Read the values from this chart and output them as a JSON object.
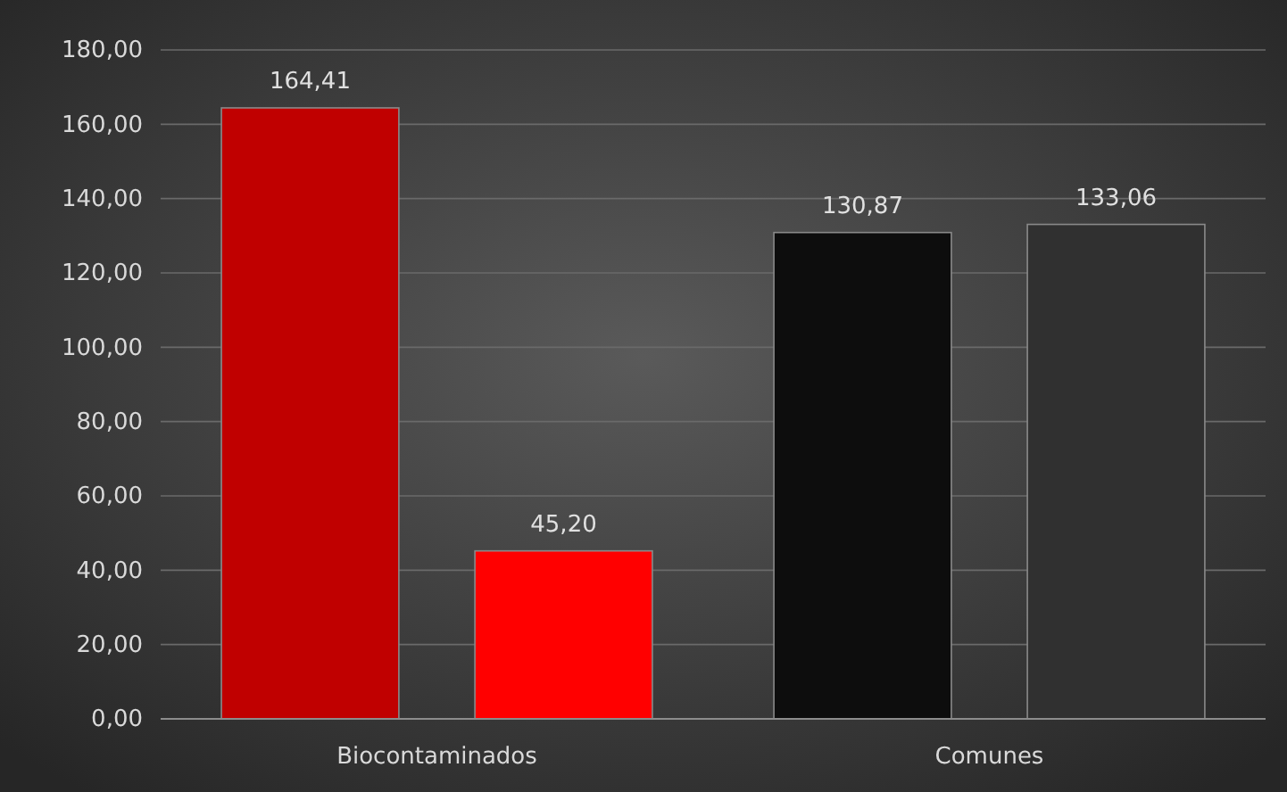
{
  "chart_data": {
    "type": "bar",
    "categories": [
      "Biocontaminados",
      "Comunes"
    ],
    "series": [
      {
        "colors": [
          "#c00000",
          "#0d0d0d"
        ],
        "values": [
          164.41,
          130.87
        ],
        "value_labels": [
          "164,41",
          "130,87"
        ]
      },
      {
        "colors": [
          "#ff0000",
          "#303030"
        ],
        "values": [
          45.2,
          133.06
        ],
        "value_labels": [
          "45,20",
          "133,06"
        ]
      }
    ],
    "ylim": [
      0,
      180
    ],
    "yticks": [
      {
        "value": 0,
        "label": "0,00"
      },
      {
        "value": 20,
        "label": "20,00"
      },
      {
        "value": 40,
        "label": "40,00"
      },
      {
        "value": 60,
        "label": "60,00"
      },
      {
        "value": 80,
        "label": "80,00"
      },
      {
        "value": 100,
        "label": "100,00"
      },
      {
        "value": 120,
        "label": "120,00"
      },
      {
        "value": 140,
        "label": "140,00"
      },
      {
        "value": 160,
        "label": "160,00"
      },
      {
        "value": 180,
        "label": "180,00"
      }
    ],
    "grid": "y"
  }
}
